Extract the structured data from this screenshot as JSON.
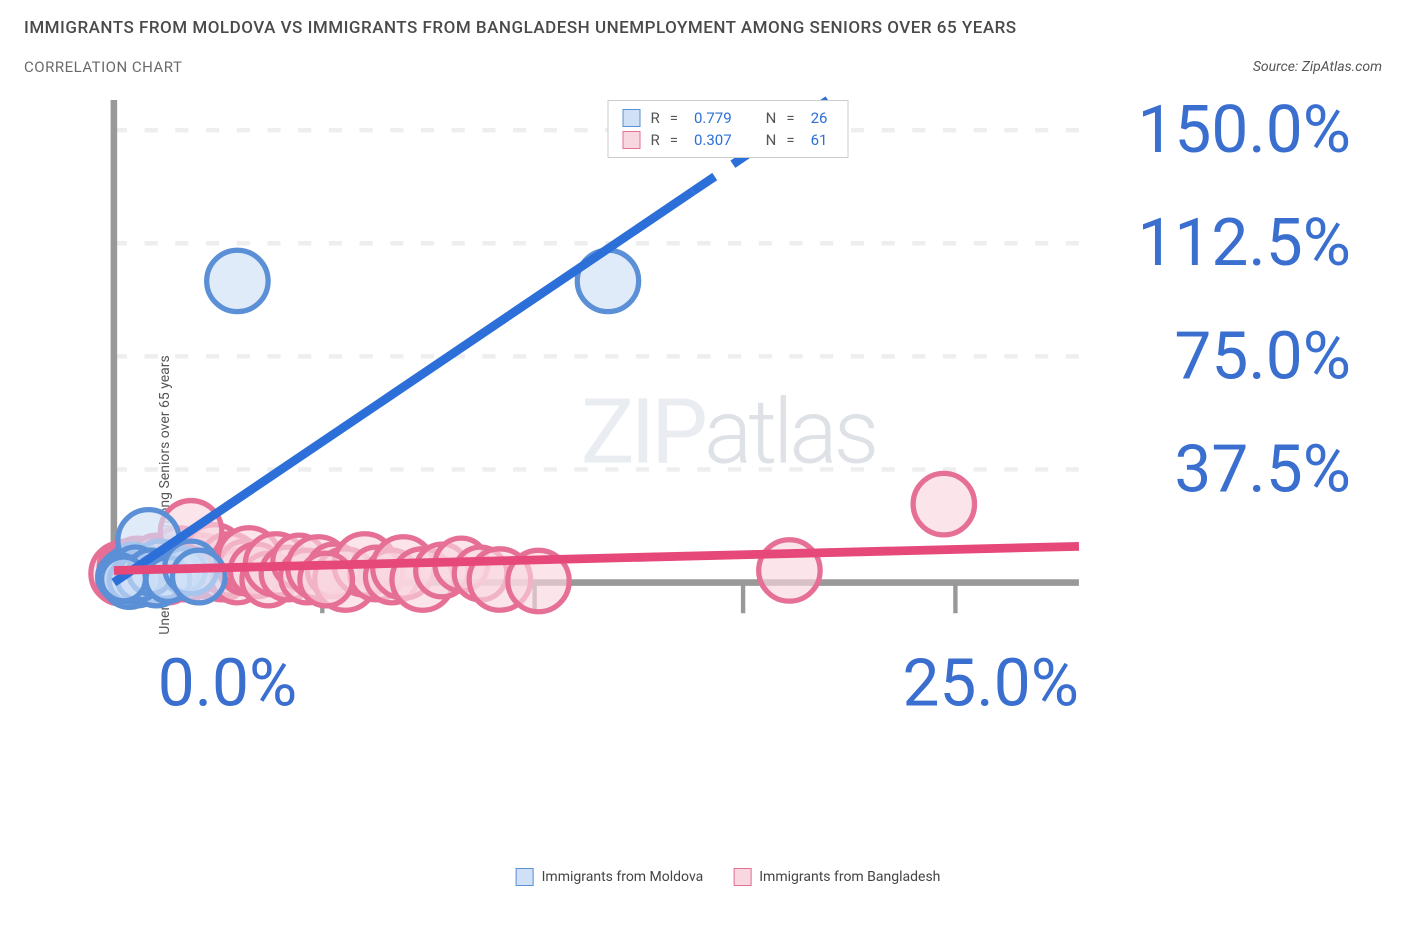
{
  "title": "IMMIGRANTS FROM MOLDOVA VS IMMIGRANTS FROM BANGLADESH UNEMPLOYMENT AMONG SENIORS OVER 65 YEARS",
  "subtitle": "CORRELATION CHART",
  "source_label": "Source:",
  "source_name": "ZipAtlas.com",
  "ylabel": "Unemployment Among Seniors over 65 years",
  "watermark_a": "ZIP",
  "watermark_b": "atlas",
  "chart": {
    "type": "scatter",
    "xlim": [
      0,
      25
    ],
    "ylim": [
      0,
      160
    ],
    "ytick_labels": [
      "37.5%",
      "75.0%",
      "112.5%",
      "150.0%"
    ],
    "ytick_vals": [
      37.5,
      75.0,
      112.5,
      150.0
    ],
    "xtick_labels": [
      "0.0%",
      "25.0%"
    ],
    "xtick_vals": [
      0,
      25
    ],
    "xtick_minor": [
      5.4,
      10.9,
      16.3,
      21.8
    ],
    "grid_color": "#eeeeee",
    "axis_color": "#999999",
    "tick_color": "#3a6fd0",
    "background_color": "#ffffff"
  },
  "series": [
    {
      "name": "Immigrants from Moldova",
      "color_fill": "#cfe0f7",
      "color_stroke": "#5b8fd6",
      "line_color": "#2d6fd8",
      "R": "0.779",
      "N": "26",
      "trend": {
        "x1": 0,
        "y1": 0,
        "x2": 18.5,
        "y2": 160,
        "dash_from_x": 15.0
      },
      "points": [
        {
          "x": 0.3,
          "y": 2,
          "r": 6
        },
        {
          "x": 0.5,
          "y": 4,
          "r": 6
        },
        {
          "x": 0.6,
          "y": 1,
          "r": 6
        },
        {
          "x": 0.8,
          "y": 3,
          "r": 6
        },
        {
          "x": 0.4,
          "y": 0.5,
          "r": 6
        },
        {
          "x": 1.0,
          "y": 2,
          "r": 6
        },
        {
          "x": 1.2,
          "y": 5,
          "r": 6
        },
        {
          "x": 1.1,
          "y": 1,
          "r": 6
        },
        {
          "x": 1.5,
          "y": 3,
          "r": 6
        },
        {
          "x": 0.9,
          "y": 14,
          "r": 7
        },
        {
          "x": 3.2,
          "y": 100,
          "r": 7
        },
        {
          "x": 12.8,
          "y": 100,
          "r": 7
        },
        {
          "x": 0.2,
          "y": 1,
          "r": 5
        },
        {
          "x": 0.7,
          "y": 2.5,
          "r": 5
        },
        {
          "x": 0.35,
          "y": 3,
          "r": 5
        },
        {
          "x": 0.55,
          "y": 4.5,
          "r": 5
        },
        {
          "x": 1.3,
          "y": 2,
          "r": 5
        },
        {
          "x": 0.15,
          "y": 2,
          "r": 5
        },
        {
          "x": 0.45,
          "y": 0.8,
          "r": 5
        },
        {
          "x": 0.65,
          "y": 1.5,
          "r": 5
        },
        {
          "x": 1.8,
          "y": 4,
          "r": 5
        },
        {
          "x": 0.95,
          "y": 3.5,
          "r": 5
        },
        {
          "x": 0.25,
          "y": 1.2,
          "r": 5
        },
        {
          "x": 1.4,
          "y": 1,
          "r": 5
        },
        {
          "x": 2.0,
          "y": 5,
          "r": 6
        },
        {
          "x": 2.2,
          "y": 2,
          "r": 6
        }
      ]
    },
    {
      "name": "Immigrants from Bangladesh",
      "color_fill": "#f9d7e0",
      "color_stroke": "#e56f95",
      "line_color": "#e6487a",
      "R": "0.307",
      "N": "61",
      "trend": {
        "x1": 0,
        "y1": 4,
        "x2": 25,
        "y2": 12,
        "dash_from_x": 25
      },
      "points": [
        {
          "x": 0.2,
          "y": 3,
          "r": 7
        },
        {
          "x": 0.3,
          "y": 5,
          "r": 6
        },
        {
          "x": 0.4,
          "y": 2,
          "r": 6
        },
        {
          "x": 0.5,
          "y": 4,
          "r": 7
        },
        {
          "x": 0.6,
          "y": 6,
          "r": 6
        },
        {
          "x": 0.7,
          "y": 3,
          "r": 6
        },
        {
          "x": 0.8,
          "y": 2,
          "r": 6
        },
        {
          "x": 0.9,
          "y": 5,
          "r": 6
        },
        {
          "x": 1.0,
          "y": 4,
          "r": 7
        },
        {
          "x": 1.1,
          "y": 7,
          "r": 6
        },
        {
          "x": 1.2,
          "y": 3,
          "r": 6
        },
        {
          "x": 1.3,
          "y": 6,
          "r": 6
        },
        {
          "x": 1.5,
          "y": 4,
          "r": 6
        },
        {
          "x": 1.7,
          "y": 8,
          "r": 7
        },
        {
          "x": 1.8,
          "y": 3,
          "r": 6
        },
        {
          "x": 2.0,
          "y": 5,
          "r": 7
        },
        {
          "x": 2.2,
          "y": 2,
          "r": 6
        },
        {
          "x": 2.3,
          "y": 7,
          "r": 6
        },
        {
          "x": 2.5,
          "y": 4,
          "r": 6
        },
        {
          "x": 2.6,
          "y": 9,
          "r": 7
        },
        {
          "x": 2.8,
          "y": 3,
          "r": 6
        },
        {
          "x": 3.0,
          "y": 6,
          "r": 7
        },
        {
          "x": 3.2,
          "y": 2,
          "r": 6
        },
        {
          "x": 3.4,
          "y": 5,
          "r": 6
        },
        {
          "x": 3.5,
          "y": 8,
          "r": 7
        },
        {
          "x": 3.7,
          "y": 4,
          "r": 6
        },
        {
          "x": 4.0,
          "y": 1,
          "r": 6
        },
        {
          "x": 4.2,
          "y": 6,
          "r": 7
        },
        {
          "x": 4.5,
          "y": 3,
          "r": 6
        },
        {
          "x": 4.8,
          "y": 7,
          "r": 6
        },
        {
          "x": 5.0,
          "y": 2,
          "r": 6
        },
        {
          "x": 5.3,
          "y": 5,
          "r": 7
        },
        {
          "x": 5.7,
          "y": 4,
          "r": 6
        },
        {
          "x": 6.0,
          "y": 1,
          "r": 7
        },
        {
          "x": 6.5,
          "y": 6,
          "r": 7
        },
        {
          "x": 6.8,
          "y": 3,
          "r": 6
        },
        {
          "x": 7.2,
          "y": 2,
          "r": 6
        },
        {
          "x": 7.5,
          "y": 5,
          "r": 7
        },
        {
          "x": 8.0,
          "y": 1,
          "r": 7
        },
        {
          "x": 8.5,
          "y": 4,
          "r": 6
        },
        {
          "x": 9.0,
          "y": 6,
          "r": 6
        },
        {
          "x": 9.5,
          "y": 3,
          "r": 6
        },
        {
          "x": 10.0,
          "y": 1,
          "r": 7
        },
        {
          "x": 11.0,
          "y": 0.5,
          "r": 7
        },
        {
          "x": 2.0,
          "y": 17,
          "r": 7
        },
        {
          "x": 17.5,
          "y": 4,
          "r": 7
        },
        {
          "x": 21.5,
          "y": 26,
          "r": 7
        },
        {
          "x": 1.4,
          "y": 2,
          "r": 6
        },
        {
          "x": 1.6,
          "y": 5,
          "r": 6
        },
        {
          "x": 1.9,
          "y": 3,
          "r": 6
        },
        {
          "x": 0.15,
          "y": 1,
          "r": 5
        },
        {
          "x": 0.25,
          "y": 2,
          "r": 5
        },
        {
          "x": 0.35,
          "y": 4,
          "r": 5
        },
        {
          "x": 0.45,
          "y": 1.5,
          "r": 5
        },
        {
          "x": 0.55,
          "y": 3,
          "r": 5
        },
        {
          "x": 0.65,
          "y": 2,
          "r": 5
        },
        {
          "x": 0.75,
          "y": 4,
          "r": 5
        },
        {
          "x": 0.85,
          "y": 1,
          "r": 5
        },
        {
          "x": 0.95,
          "y": 3,
          "r": 5
        },
        {
          "x": 1.05,
          "y": 2,
          "r": 5
        },
        {
          "x": 5.5,
          "y": 1,
          "r": 6
        }
      ]
    }
  ],
  "legend": {
    "r_label": "R",
    "n_label": "N",
    "eq": "="
  }
}
